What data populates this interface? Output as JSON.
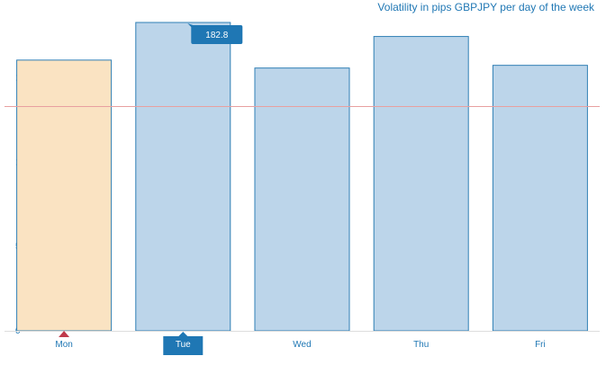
{
  "chart_data": {
    "type": "bar",
    "title": "Volatility in pips GBPJPY per day of the week",
    "categories": [
      "Mon",
      "Tue",
      "Wed",
      "Thu",
      "Fri"
    ],
    "values": [
      160.5,
      182.8,
      155.8,
      174.5,
      157.4
    ],
    "yticks": [
      0,
      50,
      100,
      150
    ],
    "ylim": [
      0,
      182.8
    ],
    "reference_line": 133,
    "highlighted_category": "Mon",
    "selected_category": "Tue",
    "tooltip": {
      "category": "Tue",
      "label": "182.8"
    },
    "xlabel": "",
    "ylabel": "",
    "grid": false,
    "colors": {
      "bar_fill": "#bcd5ea",
      "bar_stroke": "#2f7fb5",
      "highlight_fill": "#fae3c2",
      "reference_line": "#e8a0a0",
      "tooltip_bg": "#1f77b4",
      "marker": "#c0394b",
      "text": "#1f77b4"
    }
  }
}
